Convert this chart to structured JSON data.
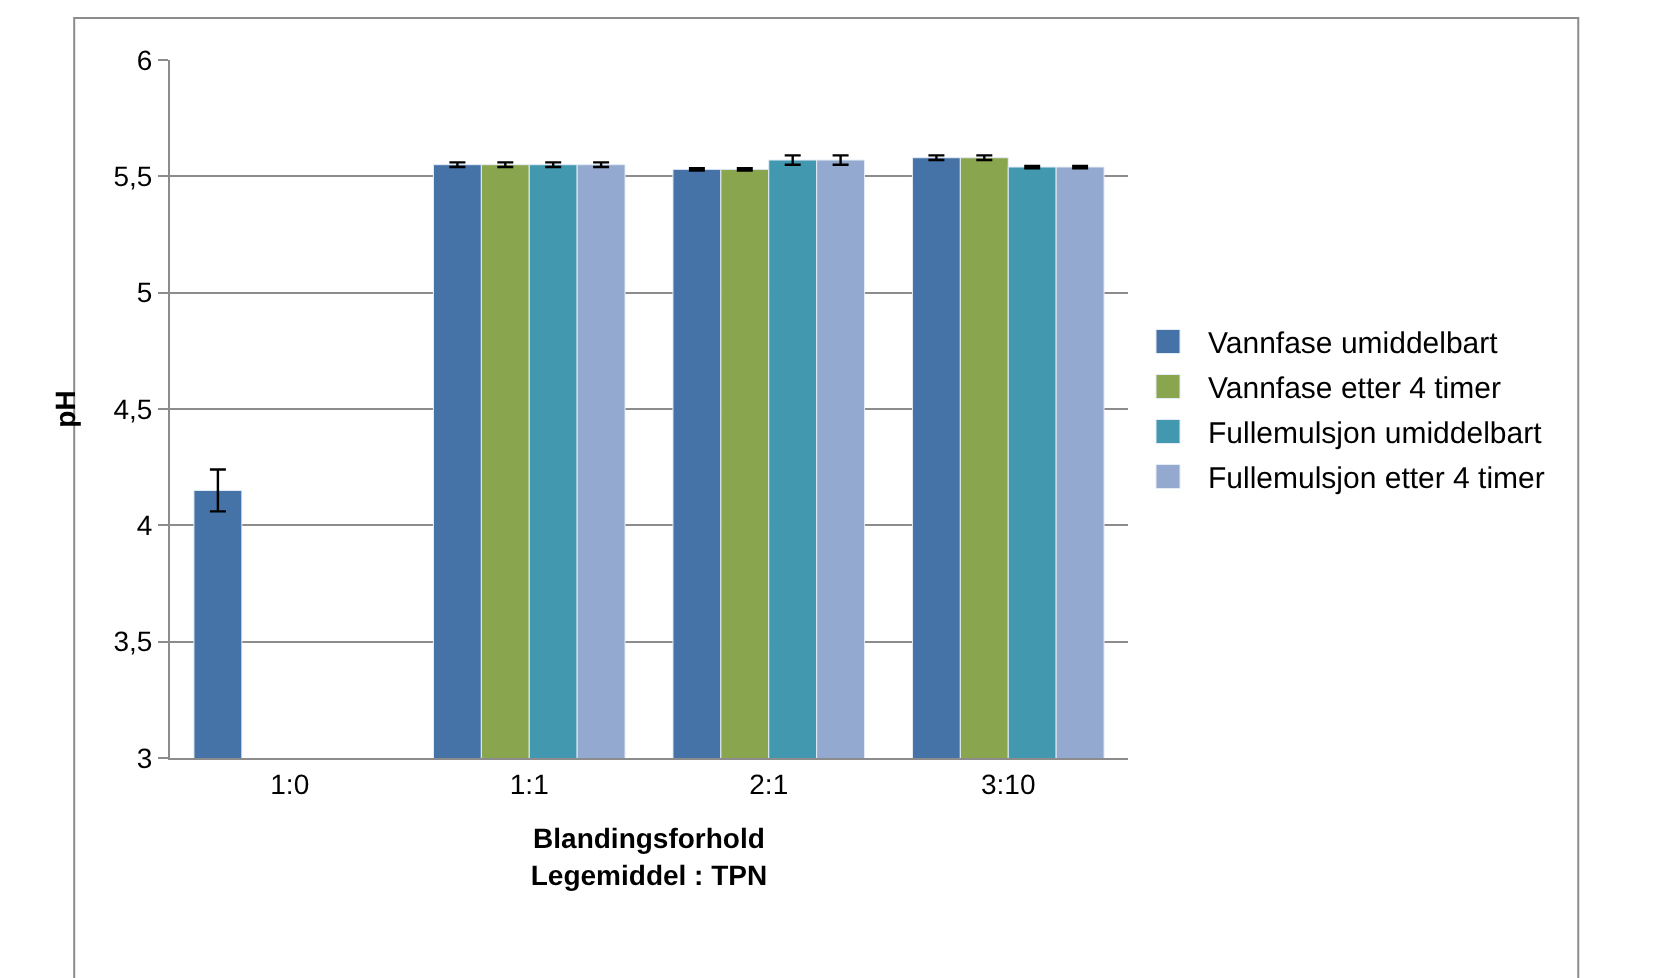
{
  "chart_data": {
    "type": "bar",
    "xlabel": "Blandingsforhold\nLegemiddel : TPN",
    "ylabel": "pH",
    "categories": [
      "1:0",
      "1:1",
      "2:1",
      "3:10"
    ],
    "series": [
      {
        "name": "Vannfase umiddelbart",
        "color": "#4572a7",
        "values": [
          4.15,
          5.55,
          5.53,
          5.58
        ],
        "errors": [
          0.09,
          0.01,
          0.005,
          0.01
        ]
      },
      {
        "name": "Vannfase etter 4 timer",
        "color": "#89a54e",
        "values": [
          null,
          5.55,
          5.53,
          5.58
        ],
        "errors": [
          null,
          0.01,
          0.005,
          0.01
        ]
      },
      {
        "name": "Fullemulsjon umiddelbart",
        "color": "#4198af",
        "values": [
          null,
          5.55,
          5.57,
          5.54
        ],
        "errors": [
          null,
          0.01,
          0.02,
          0.005
        ]
      },
      {
        "name": "Fullemulsjon etter 4 timer",
        "color": "#93a9cf",
        "values": [
          null,
          5.55,
          5.57,
          5.54
        ],
        "errors": [
          null,
          0.01,
          0.02,
          0.005
        ]
      }
    ],
    "ylim": [
      3,
      6
    ],
    "yticks": [
      3,
      {
        "value": 3.5,
        "label": "3,5"
      },
      4,
      {
        "value": 4.5,
        "label": "4,5"
      },
      5,
      {
        "value": 5.5,
        "label": "5,5"
      },
      6
    ],
    "grid": "y",
    "legend": "right"
  }
}
